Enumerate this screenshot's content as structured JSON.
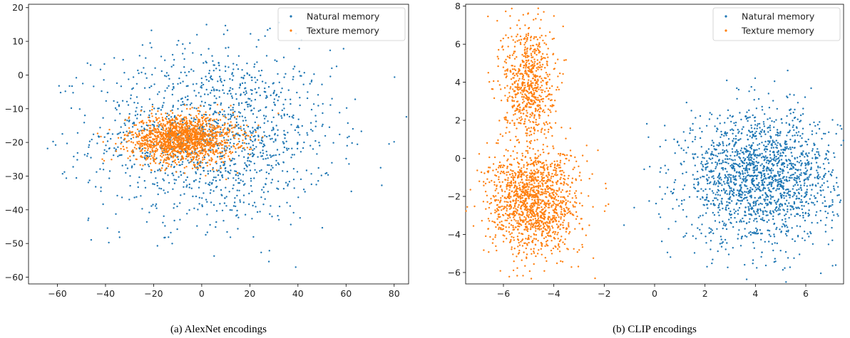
{
  "colors": {
    "natural": "#1f77b4",
    "texture": "#ff7f0e"
  },
  "chart_data": [
    {
      "type": "scatter",
      "caption": "(a) AlexNet encodings",
      "xlim": [
        -72,
        86
      ],
      "ylim": [
        -62,
        21
      ],
      "xticks": [
        -60,
        -40,
        -20,
        0,
        20,
        40,
        60,
        80
      ],
      "yticks": [
        20,
        10,
        0,
        -10,
        -20,
        -30,
        -40,
        -50,
        -60
      ],
      "legend_position": "top-right",
      "series": [
        {
          "name": "Natural memory",
          "color": "#1f77b4",
          "distribution": "broad cloud centered near (5, -18), x spread -70..83, y spread -58..19",
          "center": [
            5,
            -18
          ],
          "spread": [
            25,
            13
          ],
          "n": 1400
        },
        {
          "name": "Texture memory",
          "color": "#ff7f0e",
          "distribution": "dense elongated cluster centered near (-8, -19), x spread -45..15, y spread -27..-7",
          "center": [
            -8,
            -19
          ],
          "spread": [
            11,
            3.5
          ],
          "n": 1500
        }
      ]
    },
    {
      "type": "scatter",
      "caption": "(b) CLIP encodings",
      "xlim": [
        -7.5,
        7.5
      ],
      "ylim": [
        -6.6,
        8.1
      ],
      "xticks": [
        -6,
        -4,
        -2,
        0,
        2,
        4,
        6
      ],
      "yticks": [
        8,
        6,
        4,
        2,
        0,
        -2,
        -4,
        -6
      ],
      "legend_position": "top-right",
      "series": [
        {
          "name": "Natural memory",
          "color": "#1f77b4",
          "distribution": "cluster centered near (4.2, -1), x spread -1..7, y spread -5.3..6",
          "center": [
            4.2,
            -1
          ],
          "spread": [
            1.5,
            1.7
          ],
          "n": 1800
        },
        {
          "name": "Texture memory",
          "color": "#ff7f0e",
          "distribution": "two lobes: upper near (-5, 4), lower near (-4.8, -2.3); x spread -6.8..-1.5, y spread -5.8..7.6",
          "lobes": [
            {
              "center": [
                -5,
                4
              ],
              "spread": [
                0.5,
                1.6
              ],
              "n": 700
            },
            {
              "center": [
                -4.8,
                -2.3
              ],
              "spread": [
                0.9,
                1.4
              ],
              "n": 1400
            }
          ]
        }
      ]
    }
  ]
}
